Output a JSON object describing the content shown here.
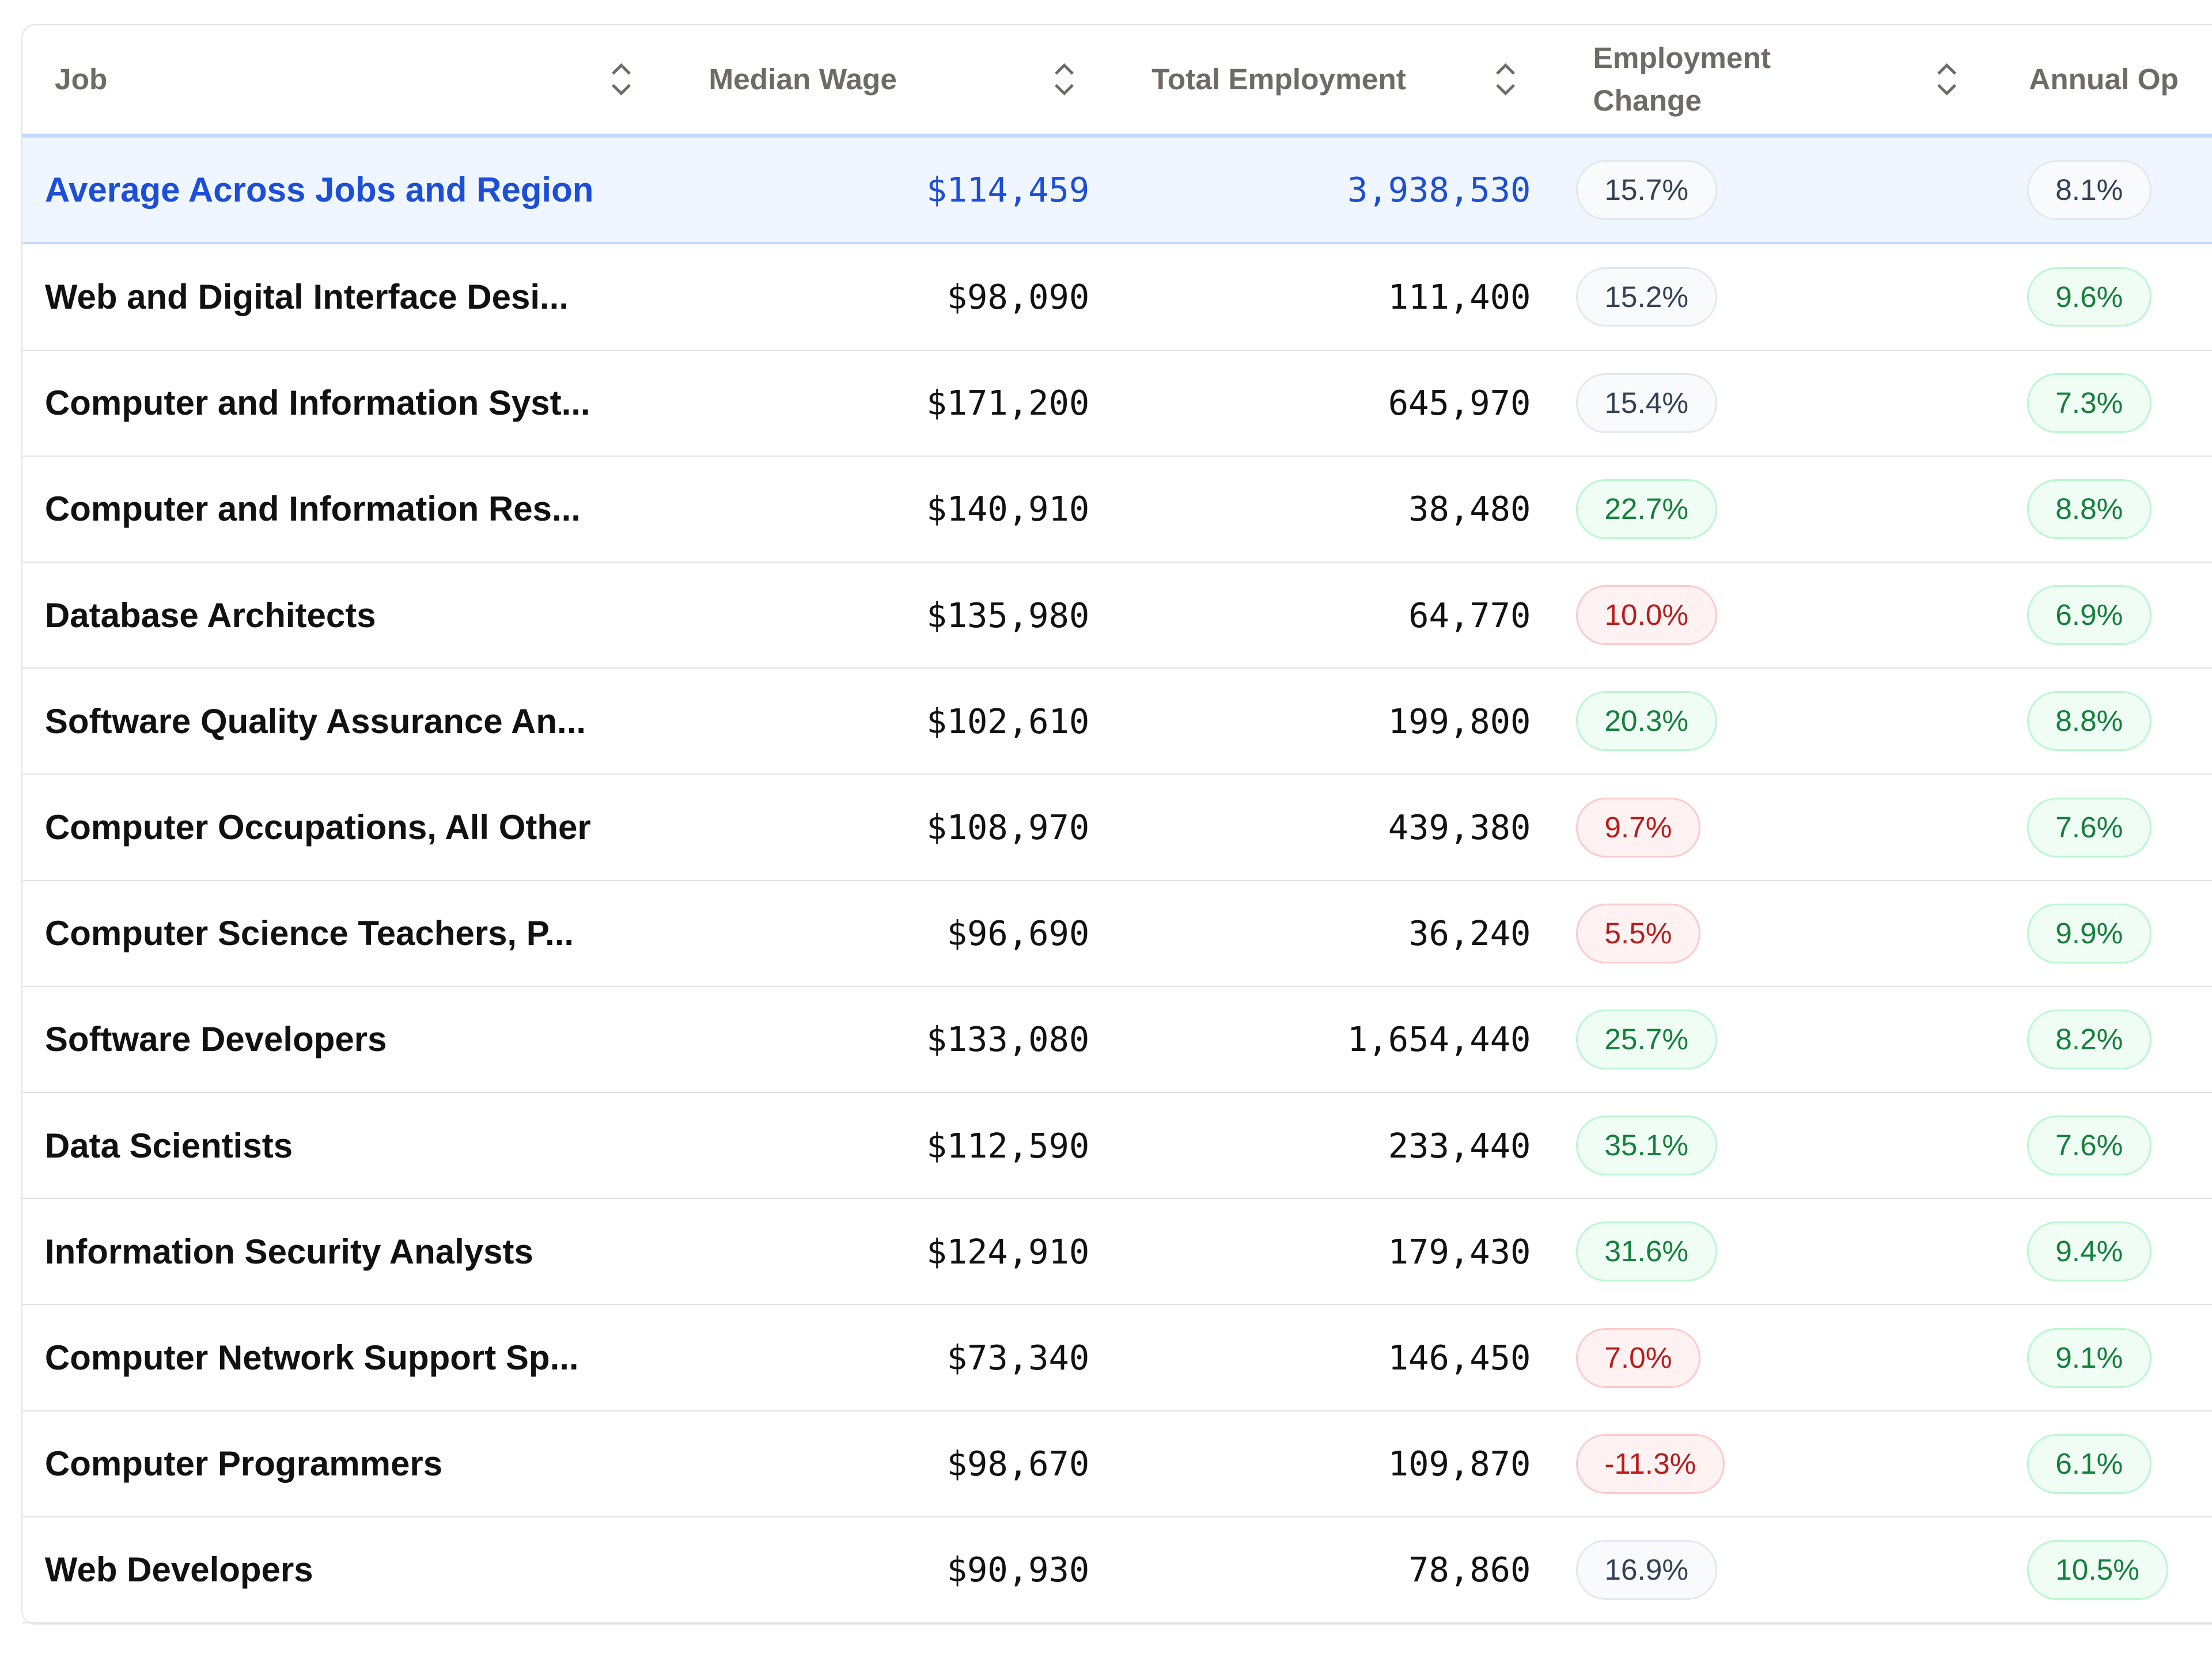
{
  "columns": [
    "Job",
    "Median Wage",
    "Total Employment",
    "Employment Change",
    "Annual Op"
  ],
  "colors": {
    "accent": "#1d4ed8",
    "positive": "#15803d",
    "negative": "#b91c1c",
    "neutral": "#334155"
  },
  "average": {
    "job": "Average Across Jobs and Region",
    "wage": "$114,459",
    "employment": "3,938,530",
    "change": "15.7%",
    "change_status": "neutral",
    "openings": "8.1%",
    "openings_status": "neutral"
  },
  "rows": [
    {
      "job": "Web and Digital Interface Desi...",
      "wage": "$98,090",
      "employment": "111,400",
      "change": "15.2%",
      "change_status": "neutral",
      "openings": "9.6%",
      "openings_status": "up"
    },
    {
      "job": "Computer and Information Syst...",
      "wage": "$171,200",
      "employment": "645,970",
      "change": "15.4%",
      "change_status": "neutral",
      "openings": "7.3%",
      "openings_status": "up"
    },
    {
      "job": "Computer and Information Res...",
      "wage": "$140,910",
      "employment": "38,480",
      "change": "22.7%",
      "change_status": "up",
      "openings": "8.8%",
      "openings_status": "up"
    },
    {
      "job": "Database Architects",
      "wage": "$135,980",
      "employment": "64,770",
      "change": "10.0%",
      "change_status": "down",
      "openings": "6.9%",
      "openings_status": "up"
    },
    {
      "job": "Software Quality Assurance An...",
      "wage": "$102,610",
      "employment": "199,800",
      "change": "20.3%",
      "change_status": "up",
      "openings": "8.8%",
      "openings_status": "up"
    },
    {
      "job": "Computer Occupations, All Other",
      "wage": "$108,970",
      "employment": "439,380",
      "change": "9.7%",
      "change_status": "down",
      "openings": "7.6%",
      "openings_status": "up"
    },
    {
      "job": "Computer Science Teachers, P...",
      "wage": "$96,690",
      "employment": "36,240",
      "change": "5.5%",
      "change_status": "down",
      "openings": "9.9%",
      "openings_status": "up"
    },
    {
      "job": "Software Developers",
      "wage": "$133,080",
      "employment": "1,654,440",
      "change": "25.7%",
      "change_status": "up",
      "openings": "8.2%",
      "openings_status": "up"
    },
    {
      "job": "Data Scientists",
      "wage": "$112,590",
      "employment": "233,440",
      "change": "35.1%",
      "change_status": "up",
      "openings": "7.6%",
      "openings_status": "up"
    },
    {
      "job": "Information Security Analysts",
      "wage": "$124,910",
      "employment": "179,430",
      "change": "31.6%",
      "change_status": "up",
      "openings": "9.4%",
      "openings_status": "up"
    },
    {
      "job": "Computer Network Support Sp...",
      "wage": "$73,340",
      "employment": "146,450",
      "change": "7.0%",
      "change_status": "down",
      "openings": "9.1%",
      "openings_status": "up"
    },
    {
      "job": "Computer Programmers",
      "wage": "$98,670",
      "employment": "109,870",
      "change": "-11.3%",
      "change_status": "down",
      "openings": "6.1%",
      "openings_status": "up"
    },
    {
      "job": "Web Developers",
      "wage": "$90,930",
      "employment": "78,860",
      "change": "16.9%",
      "change_status": "neutral",
      "openings": "10.5%",
      "openings_status": "up"
    }
  ]
}
